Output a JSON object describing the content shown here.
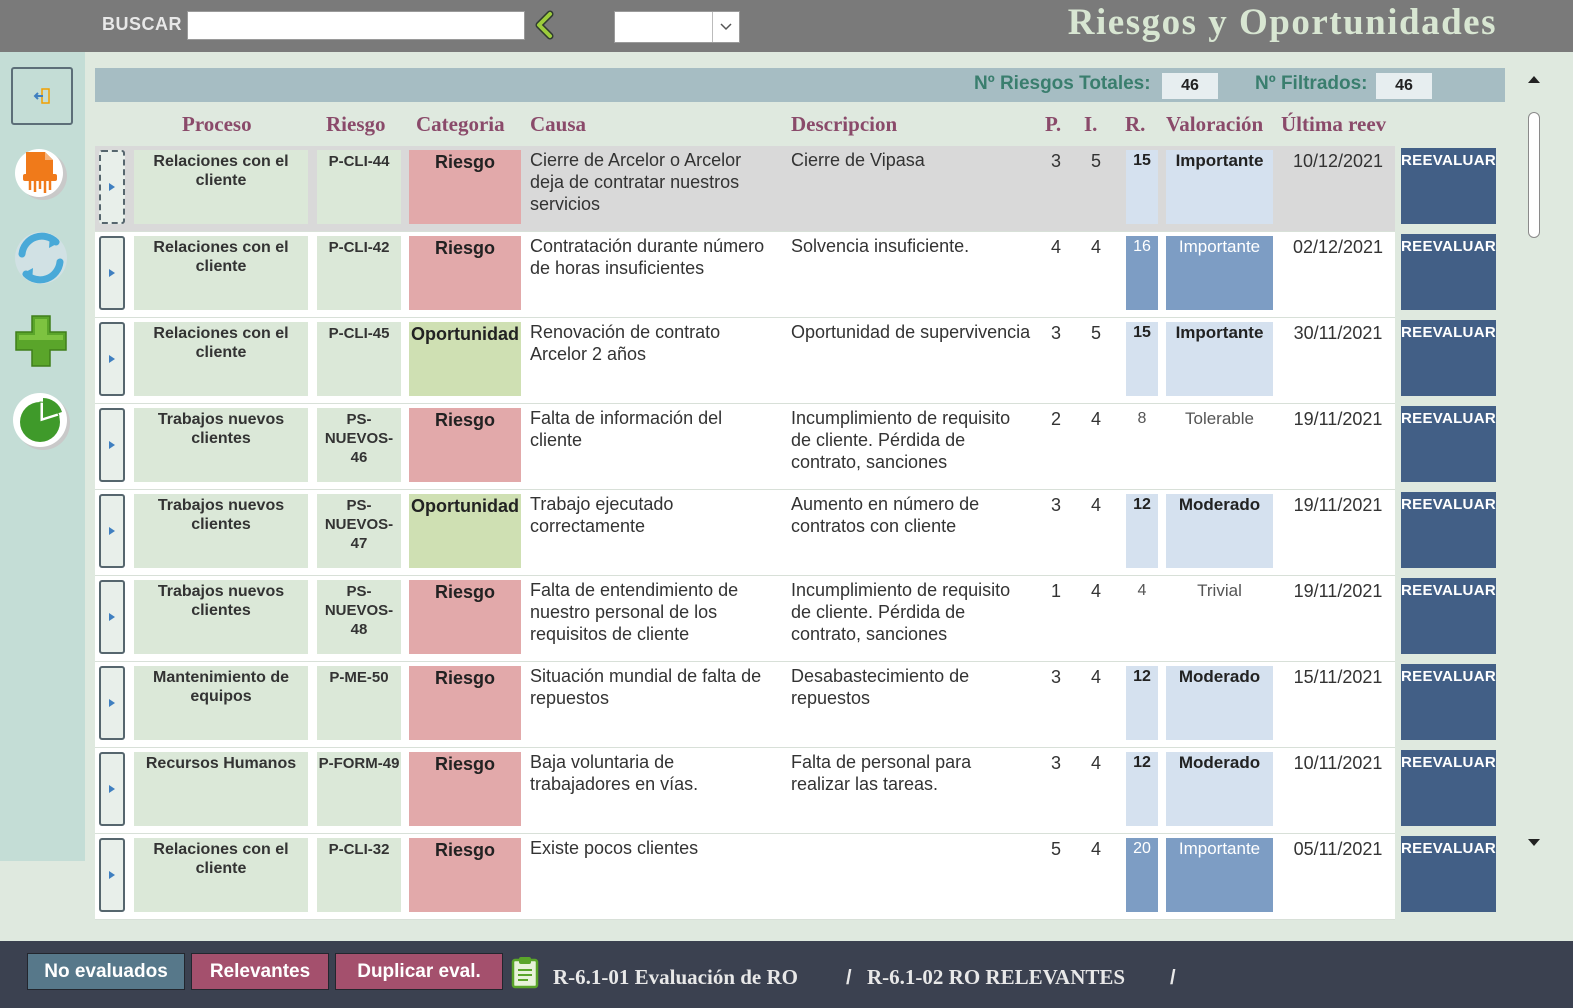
{
  "header": {
    "search_label": "BUSCAR",
    "search_value": "",
    "filter_value": "",
    "title": "Riesgos y Oportunidades"
  },
  "counters": {
    "total_label": "Nº Riesgos Totales:",
    "total_value": "46",
    "filtered_label": "Nº Filtrados:",
    "filtered_value": "46"
  },
  "columns": {
    "proceso": "Proceso",
    "riesgo": "Riesgo",
    "categoria": "Categoria",
    "causa": "Causa",
    "descripcion": "Descripcion",
    "p": "P.",
    "i": "I.",
    "r": "R.",
    "valoracion": "Valoración",
    "ultima": "Última reev"
  },
  "reevaluar_label": "REEVALUAR",
  "rows": [
    {
      "proceso": "Relaciones con el cliente",
      "codigo": "P-CLI-44",
      "categoria": "Riesgo",
      "causa": "Cierre de Arcelor o Arcelor deja de contratar nuestros servicios",
      "descripcion": "Cierre de Vipasa",
      "p": "3",
      "i": "5",
      "r": "15",
      "valoracion": "Importante",
      "fecha": "10/12/2021",
      "level": "light",
      "selected": true
    },
    {
      "proceso": "Relaciones con el cliente",
      "codigo": "P-CLI-42",
      "categoria": "Riesgo",
      "causa": "Contratación durante número de horas insuficientes",
      "descripcion": "Solvencia insuficiente.",
      "p": "4",
      "i": "4",
      "r": "16",
      "valoracion": "Importante",
      "fecha": "02/12/2021",
      "level": "dark",
      "selected": false
    },
    {
      "proceso": "Relaciones con el cliente",
      "codigo": "P-CLI-45",
      "categoria": "Oportunidad",
      "causa": "Renovación de contrato Arcelor 2 años",
      "descripcion": "Oportunidad de supervivencia",
      "p": "3",
      "i": "5",
      "r": "15",
      "valoracion": "Importante",
      "fecha": "30/11/2021",
      "level": "light",
      "selected": false
    },
    {
      "proceso": "Trabajos nuevos clientes",
      "codigo": "PS-NUEVOS-46",
      "categoria": "Riesgo",
      "causa": "Falta de información del cliente",
      "descripcion": "Incumplimiento de requisito de cliente. Pérdida de contrato, sanciones",
      "p": "2",
      "i": "4",
      "r": "8",
      "valoracion": "Tolerable",
      "fecha": "19/11/2021",
      "level": "none",
      "selected": false
    },
    {
      "proceso": "Trabajos nuevos clientes",
      "codigo": "PS-NUEVOS-47",
      "categoria": "Oportunidad",
      "causa": "Trabajo ejecutado correctamente",
      "descripcion": "Aumento en número de contratos con cliente",
      "p": "3",
      "i": "4",
      "r": "12",
      "valoracion": "Moderado",
      "fecha": "19/11/2021",
      "level": "light",
      "selected": false
    },
    {
      "proceso": "Trabajos nuevos clientes",
      "codigo": "PS-NUEVOS-48",
      "categoria": "Riesgo",
      "causa": "Falta de entendimiento de nuestro personal de los requisitos de cliente",
      "descripcion": "Incumplimiento de requisito de cliente. Pérdida de contrato, sanciones",
      "p": "1",
      "i": "4",
      "r": "4",
      "valoracion": "Trivial",
      "fecha": "19/11/2021",
      "level": "none",
      "selected": false
    },
    {
      "proceso": "Mantenimiento de equipos",
      "codigo": "P-ME-50",
      "categoria": "Riesgo",
      "causa": "Situación mundial de falta de repuestos",
      "descripcion": "Desabastecimiento de repuestos",
      "p": "3",
      "i": "4",
      "r": "12",
      "valoracion": "Moderado",
      "fecha": "15/11/2021",
      "level": "light",
      "selected": false
    },
    {
      "proceso": "Recursos Humanos",
      "codigo": "P-FORM-49",
      "categoria": "Riesgo",
      "causa": "Baja voluntaria de trabajadores en vías.",
      "descripcion": "Falta de personal para realizar las tareas.",
      "p": "3",
      "i": "4",
      "r": "12",
      "valoracion": "Moderado",
      "fecha": "10/11/2021",
      "level": "light",
      "selected": false
    },
    {
      "proceso": "Relaciones con el cliente",
      "codigo": "P-CLI-32",
      "categoria": "Riesgo",
      "causa": "Existe pocos clientes",
      "descripcion": "",
      "p": "5",
      "i": "4",
      "r": "20",
      "valoracion": "Importante",
      "fecha": "05/11/2021",
      "level": "dark",
      "selected": false
    }
  ],
  "footer": {
    "btn_no_evaluados": "No evaluados",
    "btn_relevantes": "Relevantes",
    "btn_duplicar": "Duplicar eval.",
    "link1": "R-6.1-01 Evaluación de RO",
    "sep": "/",
    "link2": "R-6.1-02 RO RELEVANTES"
  },
  "colors": {
    "header_bg": "#7a7a7a",
    "riesgo": "#e2a9aa",
    "oportunidad": "#cfe0b3",
    "reevaluar": "#425f86",
    "btn_no_evaluados": "#57788a",
    "btn_relevantes": "#a4506d"
  }
}
